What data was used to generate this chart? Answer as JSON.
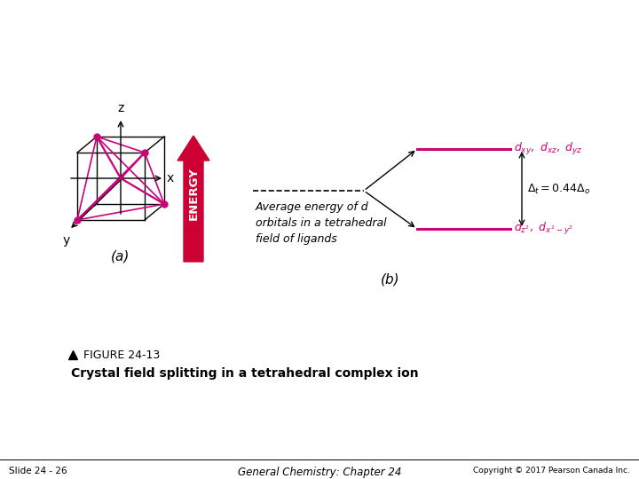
{
  "bg_color": "#ffffff",
  "pink_color": "#cc007a",
  "dark_red_arrow": "#cc0033",
  "line_color": "#000000",
  "figure_title": "FIGURE 24-13",
  "figure_subtitle": "Crystal field splitting in a tetrahedral complex ion",
  "slide_text": "Slide 24 - 26",
  "center_text": "General Chemistry: Chapter 24",
  "copyright_text": "Copyright © 2017 Pearson Canada Inc.",
  "label_a": "(a)",
  "label_b": "(b)",
  "avg_energy_text": "Average energy of d\norbitals in a tetrahedral\nfield of ligands",
  "energy_label": "ENERGY"
}
